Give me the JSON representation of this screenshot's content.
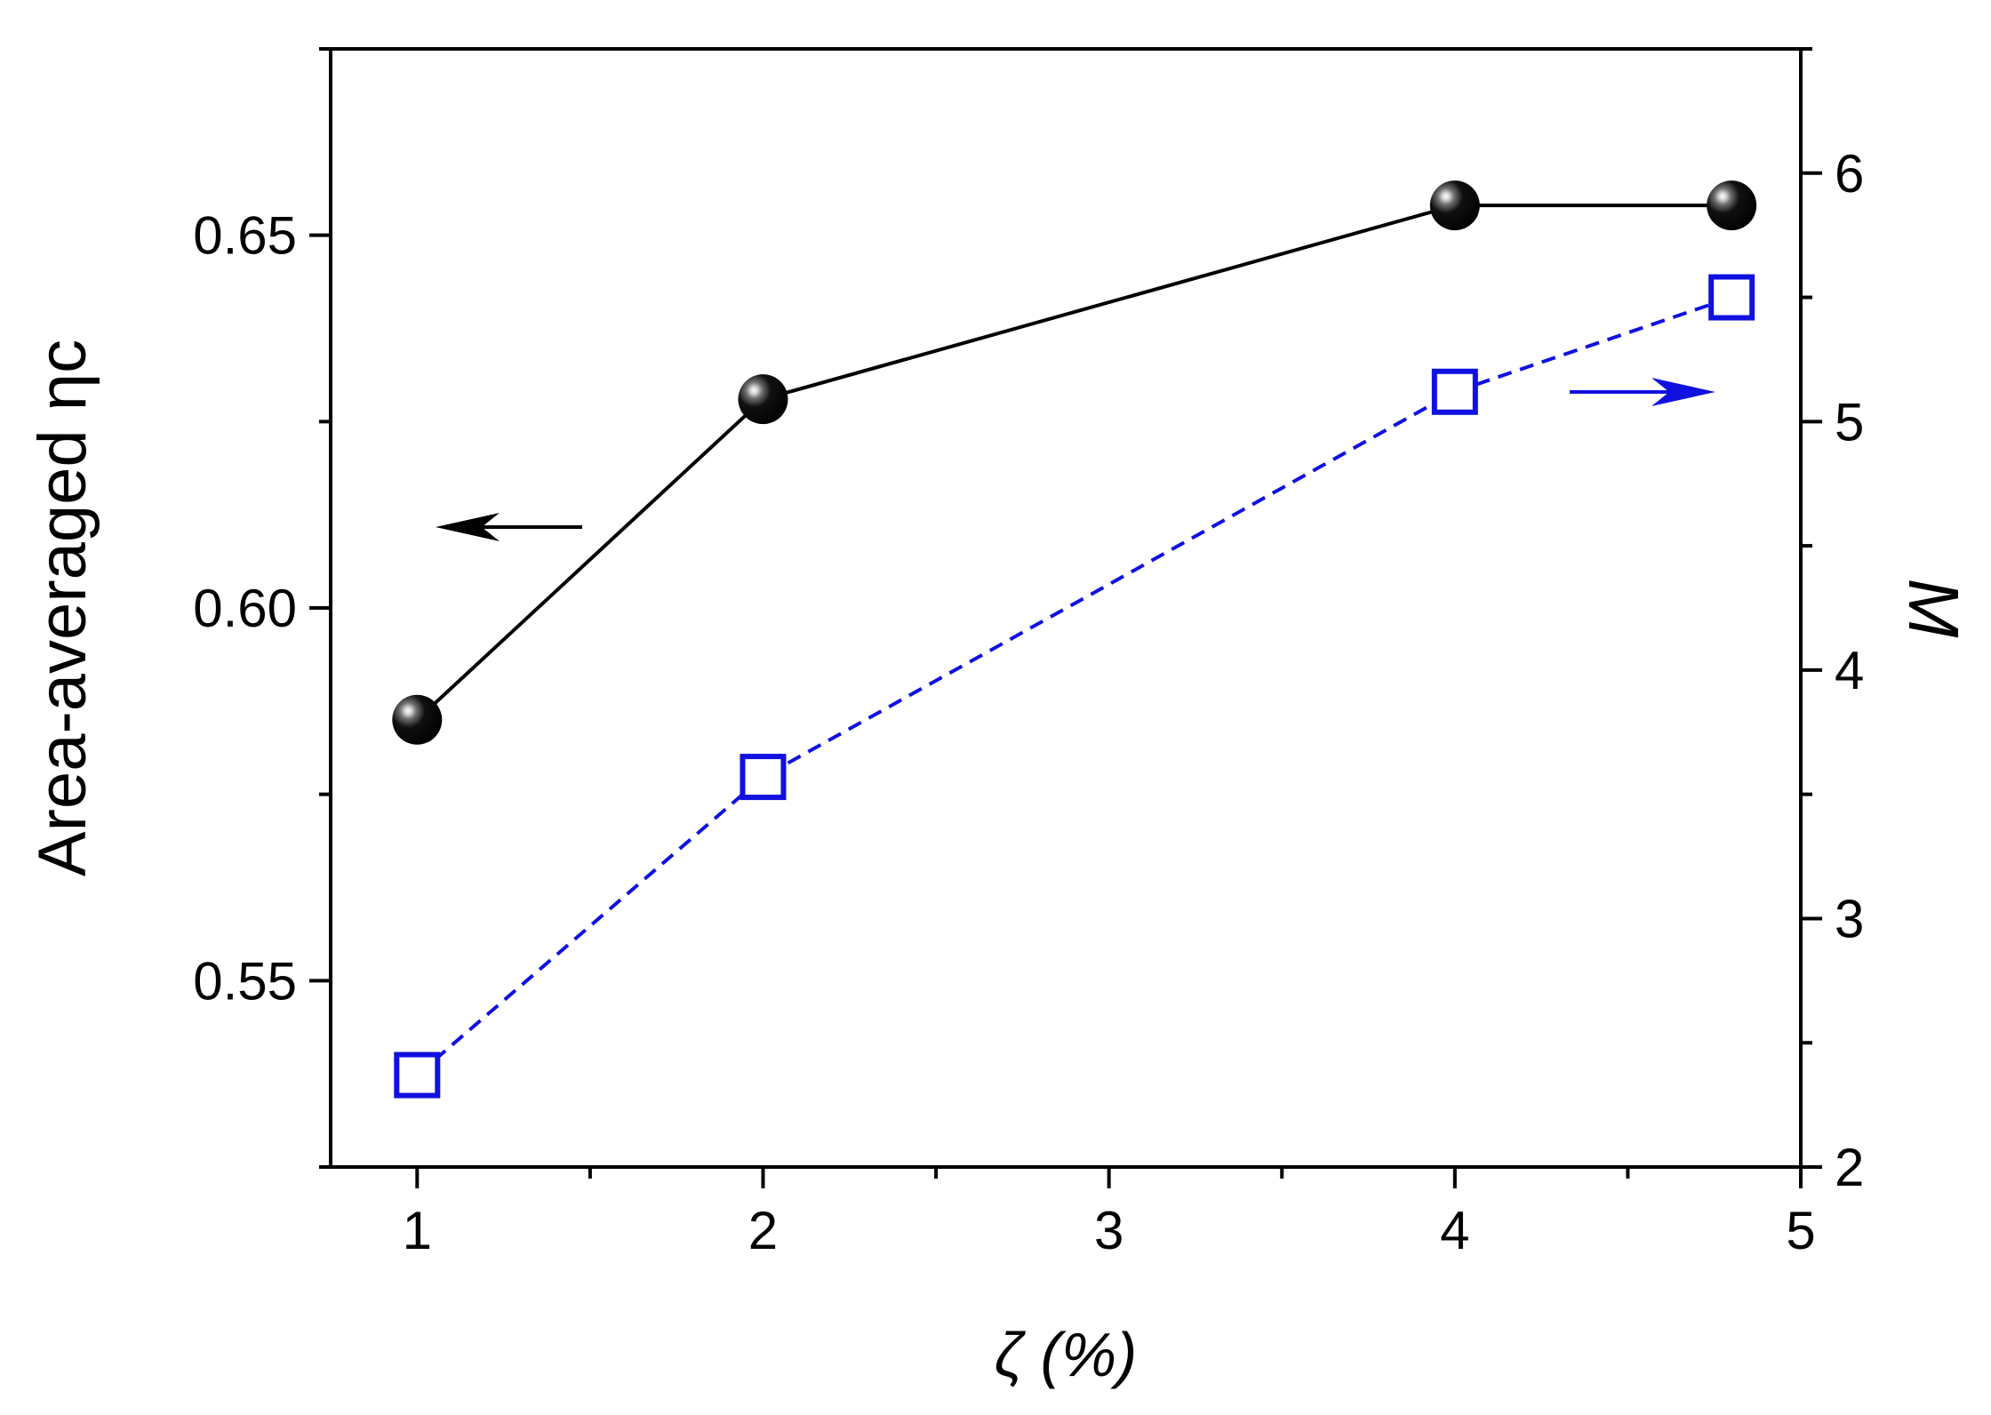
{
  "chart_data": {
    "type": "line",
    "xlabel": "ζ (%)",
    "ylabel_left": "Area-averaged ηc",
    "ylabel_right": "M",
    "xlim": [
      0.75,
      5
    ],
    "ylim_left": [
      0.525,
      0.675
    ],
    "ylim_right": [
      2,
      6.5
    ],
    "x_ticks": [
      1,
      2,
      3,
      4,
      5
    ],
    "y_left_ticks": [
      0.55,
      0.6,
      0.65
    ],
    "y_right_ticks": [
      2,
      3,
      4,
      5,
      6
    ],
    "grid": false,
    "legend": "none",
    "series": [
      {
        "axis": "left",
        "marker": "filled-circle",
        "line": "solid",
        "color": "#000000",
        "x": [
          1,
          2,
          4,
          4.8
        ],
        "y": [
          0.585,
          0.628,
          0.654,
          0.654
        ]
      },
      {
        "axis": "right",
        "marker": "open-square",
        "line": "dashed",
        "color": "#1010e0",
        "x": [
          1,
          2,
          4,
          4.8
        ],
        "y": [
          2.37,
          3.57,
          5.12,
          5.5
        ]
      }
    ],
    "annotations": [
      {
        "type": "arrow",
        "direction": "left",
        "points_to": "left-axis",
        "color": "#000000"
      },
      {
        "type": "arrow",
        "direction": "right",
        "points_to": "right-axis",
        "color": "#1010e0"
      }
    ]
  }
}
